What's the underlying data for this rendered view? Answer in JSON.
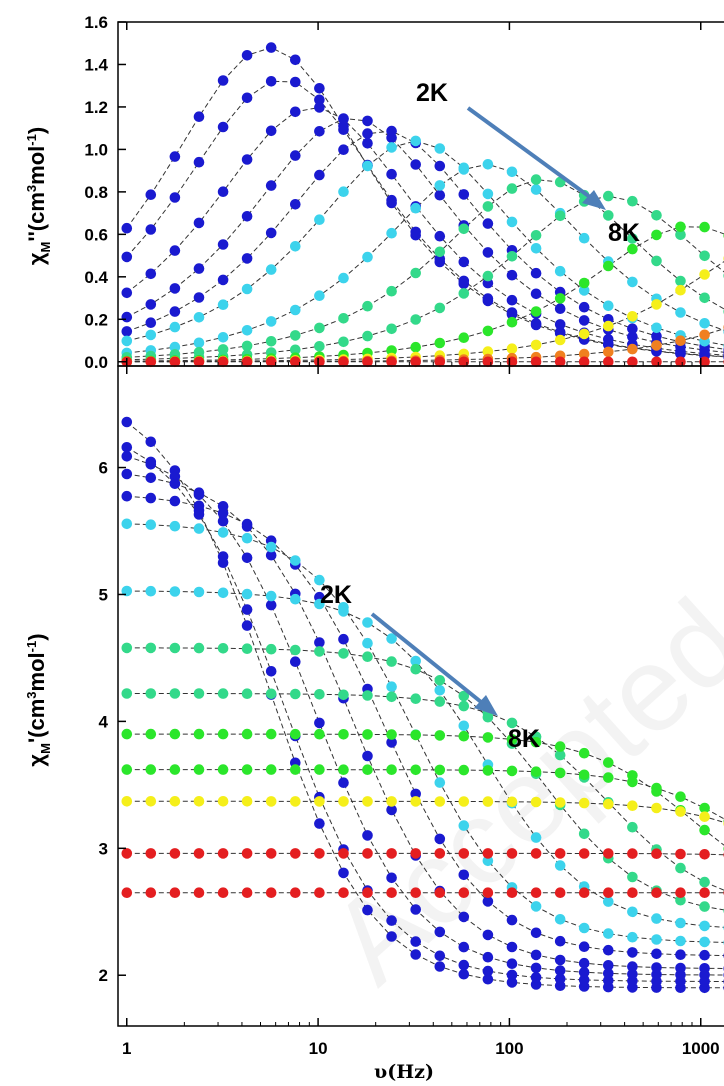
{
  "chart_data": [
    {
      "type": "scatter",
      "panel": "top",
      "ylabel": {
        "base": "χ",
        "sub": "M",
        "rest": "''(cm",
        "sup1": "3",
        "mid": "mol",
        "sup2": "-1",
        "end": ")"
      },
      "xscale": "log",
      "xlim": [
        0.9,
        1400
      ],
      "ylim": [
        -0.02,
        1.6
      ],
      "yticks": [
        "0.0",
        "0.2",
        "0.4",
        "0.6",
        "0.8",
        "1.0",
        "1.2",
        "1.4",
        "1.6"
      ],
      "annotations": [
        {
          "text": "2K",
          "color": "#5b8fd0"
        },
        {
          "text": "8K",
          "color": "#e41e20"
        }
      ],
      "arrow": {
        "from": [
          2.2,
          1.35
        ],
        "to": [
          6.5,
          1.15
        ],
        "color": "#4e7fb8"
      },
      "series": [
        {
          "color": "#1a1ad0",
          "peak": 5.5,
          "amp": 1.48,
          "base": 0.0,
          "alpha": 0.12,
          "ci": 0
        },
        {
          "color": "#1a1ad0",
          "peak": 6.5,
          "amp": 1.33,
          "base": 0.0,
          "alpha": 0.12,
          "ci": 1
        },
        {
          "color": "#1a1ad0",
          "peak": 9.5,
          "amp": 1.2,
          "base": 0.0,
          "alpha": 0.12,
          "ci": 2
        },
        {
          "color": "#1a1ad0",
          "peak": 15,
          "amp": 1.15,
          "base": 0.0,
          "alpha": 0.12,
          "ci": 3
        },
        {
          "color": "#1a1ad0",
          "peak": 22,
          "amp": 1.09,
          "base": 0.0,
          "alpha": 0.12,
          "ci": 4
        },
        {
          "color": "#3cd3ec",
          "peak": 32,
          "amp": 1.04,
          "base": 0.0,
          "alpha": 0.12,
          "ci": 5
        },
        {
          "color": "#3cd3ec",
          "peak": 75,
          "amp": 0.93,
          "base": 0.0,
          "alpha": 0.12,
          "ci": 6
        },
        {
          "color": "#33d98a",
          "peak": 150,
          "amp": 0.86,
          "base": 0.0,
          "alpha": 0.12,
          "ci": 7
        },
        {
          "color": "#33d98a",
          "peak": 330,
          "amp": 0.78,
          "base": 0.0,
          "alpha": 0.12,
          "ci": 8
        },
        {
          "color": "#2be62b",
          "peak": 900,
          "amp": 0.64,
          "base": 0.0,
          "alpha": 0.12,
          "ci": 9
        },
        {
          "color": "#f5ef1a",
          "peak": 3000,
          "amp": 0.6,
          "base": 0.0,
          "alpha": 0.12,
          "ci": 10
        },
        {
          "color": "#f08020",
          "peak": 12000,
          "amp": 0.55,
          "base": 0.0,
          "alpha": 0.12,
          "ci": 11
        },
        {
          "color": "#e41e20",
          "peak": 1000000,
          "amp": 0.0,
          "base": 0.0,
          "alpha": 0.12,
          "ci": 12
        }
      ]
    },
    {
      "type": "scatter",
      "panel": "bottom",
      "ylabel": {
        "base": "χ",
        "sub": "M",
        "rest": "'(cm",
        "sup1": "3",
        "mid": "mol",
        "sup2": "-1",
        "end": ")"
      },
      "xlabel": "υ(Hz)",
      "xscale": "log",
      "xlim": [
        0.9,
        1400
      ],
      "ylim": [
        1.6,
        6.8
      ],
      "yticks": [
        "2",
        "3",
        "4",
        "5",
        "6"
      ],
      "xticks": [
        "1",
        "10",
        "100",
        "1000"
      ],
      "annotations": [
        {
          "text": "2K",
          "color": "#5b8fd0"
        },
        {
          "text": "8K",
          "color": "#e41e20"
        }
      ],
      "series": [
        {
          "color": "#1a1ad0",
          "chi0": 6.65,
          "chiS": 1.9,
          "tau_f": 5.5
        },
        {
          "color": "#1a1ad0",
          "chi0": 6.37,
          "chiS": 1.95,
          "tau_f": 6.5
        },
        {
          "color": "#1a1ad0",
          "chi0": 6.2,
          "chiS": 2.0,
          "tau_f": 9.5
        },
        {
          "color": "#1a1ad0",
          "chi0": 6.0,
          "chiS": 2.05,
          "tau_f": 15
        },
        {
          "color": "#1a1ad0",
          "chi0": 5.8,
          "chiS": 2.15,
          "tau_f": 22
        },
        {
          "color": "#3cd3ec",
          "chi0": 5.57,
          "chiS": 2.25,
          "tau_f": 32
        },
        {
          "color": "#3cd3ec",
          "chi0": 5.03,
          "chiS": 2.35,
          "tau_f": 75
        },
        {
          "color": "#33d98a",
          "chi0": 4.58,
          "chiS": 2.45,
          "tau_f": 150
        },
        {
          "color": "#33d98a",
          "chi0": 4.22,
          "chiS": 2.5,
          "tau_f": 330
        },
        {
          "color": "#2be62b",
          "chi0": 3.9,
          "chiS": 2.55,
          "tau_f": 900
        },
        {
          "color": "#2be62b",
          "chi0": 3.62,
          "chiS": 2.6,
          "tau_f": 1800
        },
        {
          "color": "#f5ef1a",
          "chi0": 3.37,
          "chiS": 2.6,
          "tau_f": 3000
        },
        {
          "color": "#e41e20",
          "chi0": 2.96,
          "chiS": 2.6,
          "tau_f": 12000
        },
        {
          "color": "#e41e20",
          "chi0": 2.65,
          "chiS": 2.6,
          "tau_f": 1000000
        }
      ]
    }
  ],
  "watermark": "Accepted manuscript"
}
